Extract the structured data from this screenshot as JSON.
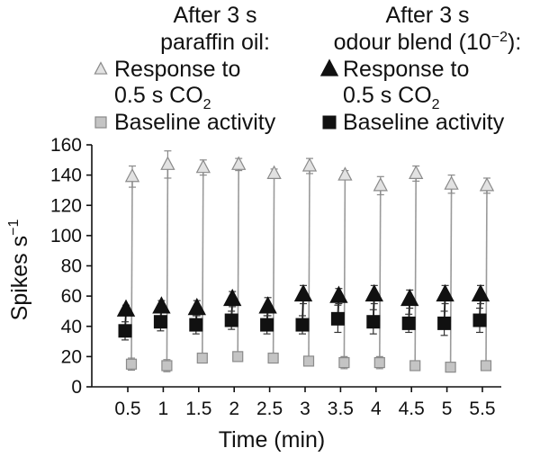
{
  "chart_data": {
    "type": "scatter",
    "xlabel": "Time (min)",
    "ylabel": "Spikes s",
    "ylabel_sup": "−1",
    "ylim": [
      0,
      160
    ],
    "yticks": [
      0,
      20,
      40,
      60,
      80,
      100,
      120,
      140,
      160
    ],
    "categories": [
      "0.5",
      "1",
      "1.5",
      "2",
      "2.5",
      "3",
      "3.5",
      "4",
      "4.5",
      "5",
      "5.5"
    ],
    "grid": false,
    "legend": {
      "groups": [
        {
          "heading": [
            "After 3 s",
            "paraffin oil:"
          ],
          "entries": [
            {
              "label_lines": [
                "Response to",
                "0.5 s CO",
                "2"
              ],
              "series": "paraffin-response"
            },
            {
              "label_lines": [
                "Baseline activity"
              ],
              "series": "paraffin-baseline"
            }
          ]
        },
        {
          "heading": [
            "After 3 s",
            "odour blend (10",
            "−2",
            "):"
          ],
          "entries": [
            {
              "label_lines": [
                "Response to",
                "0.5 s CO",
                "2"
              ],
              "series": "odour-response"
            },
            {
              "label_lines": [
                "Baseline activity"
              ],
              "series": "odour-baseline"
            }
          ]
        }
      ]
    },
    "series": [
      {
        "name": "paraffin-response",
        "marker": "triangle-open",
        "color": "#a0a0a0",
        "values": [
          139,
          147,
          145,
          147,
          141,
          146,
          140,
          133,
          141,
          134,
          133
        ],
        "errors": [
          7,
          9,
          5,
          4,
          3,
          5,
          3,
          6,
          5,
          6,
          5
        ]
      },
      {
        "name": "paraffin-baseline",
        "marker": "square-open",
        "color": "#a0a0a0",
        "values": [
          15,
          14,
          19,
          20,
          19,
          17,
          16,
          16,
          14,
          13,
          14
        ],
        "errors": [
          4,
          4,
          3,
          2,
          3,
          3,
          4,
          4,
          3,
          2,
          3
        ]
      },
      {
        "name": "odour-response",
        "marker": "triangle-filled",
        "color": "#111111",
        "values": [
          51,
          53,
          52,
          58,
          53,
          61,
          60,
          61,
          58,
          61,
          61
        ],
        "errors": [
          3,
          4,
          5,
          5,
          6,
          6,
          5,
          6,
          6,
          6,
          6
        ]
      },
      {
        "name": "odour-baseline",
        "marker": "square-filled",
        "color": "#111111",
        "values": [
          37,
          43,
          41,
          44,
          41,
          41,
          45,
          43,
          42,
          42,
          44
        ],
        "errors": [
          6,
          6,
          6,
          6,
          6,
          6,
          9,
          8,
          6,
          8,
          8
        ]
      }
    ]
  }
}
